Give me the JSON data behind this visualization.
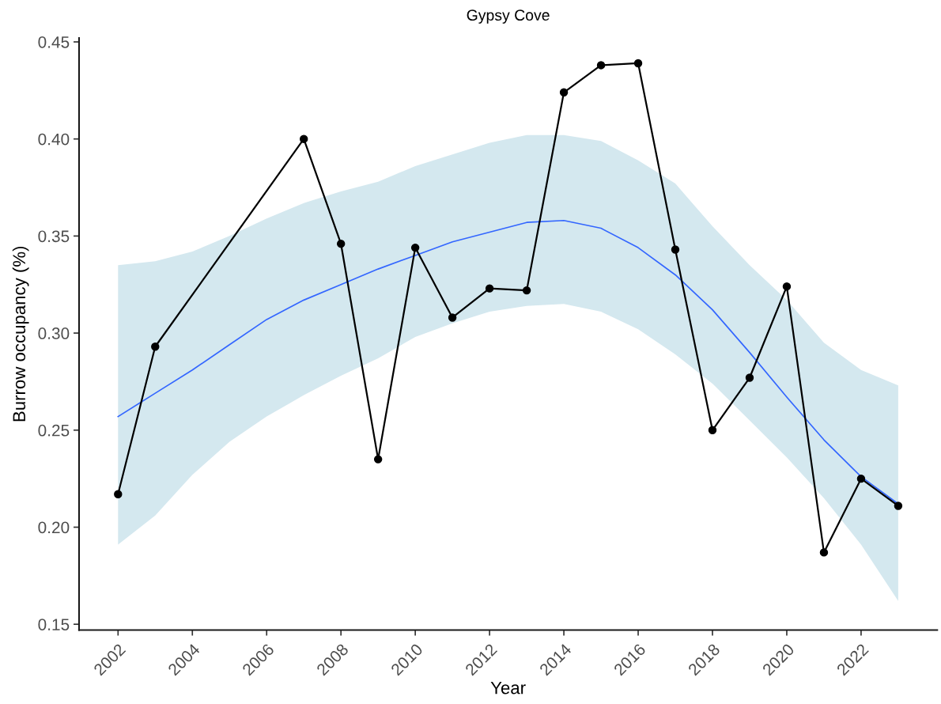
{
  "chart_data": {
    "type": "line",
    "title": "Gypsy Cove",
    "xlabel": "Year",
    "ylabel": "Burrow occupancy (%)",
    "xlim": [
      2000.95,
      2024.05
    ],
    "xticks": [
      2002,
      2004,
      2006,
      2008,
      2010,
      2012,
      2014,
      2016,
      2018,
      2020,
      2022
    ],
    "ylim": [
      0.147,
      0.452
    ],
    "yticks": [
      0.15,
      {
        "value": 0.2,
        "label": "0.20"
      },
      0.25,
      {
        "value": 0.3,
        "label": "0.30"
      },
      0.35,
      {
        "value": 0.4,
        "label": "0.40"
      },
      0.45
    ],
    "marker": "circle",
    "line_style": "solid",
    "series": [
      {
        "color": "#000000",
        "x": [
          2002,
          2003,
          2007,
          2008,
          2009,
          2010,
          2011,
          2012,
          2013,
          2014,
          2015,
          2016,
          2017,
          2018,
          2019,
          2020,
          2021,
          2022,
          2023
        ],
        "values": [
          0.217,
          0.293,
          0.4,
          0.346,
          0.235,
          0.344,
          0.308,
          0.323,
          0.322,
          0.424,
          0.438,
          0.439,
          0.343,
          0.25,
          0.277,
          0.324,
          0.187,
          0.225,
          0.211
        ]
      },
      {
        "type": "line",
        "color": "#3366ff",
        "marker": "none",
        "x": [
          2002,
          2003,
          2004,
          2005,
          2006,
          2007,
          2008,
          2009,
          2010,
          2011,
          2012,
          2013,
          2014,
          2015,
          2016,
          2017,
          2018,
          2019,
          2020,
          2021,
          2022,
          2023
        ],
        "values": [
          0.257,
          0.269,
          0.281,
          0.294,
          0.307,
          0.317,
          0.325,
          0.333,
          0.34,
          0.347,
          0.352,
          0.357,
          0.358,
          0.354,
          0.344,
          0.33,
          0.312,
          0.29,
          0.267,
          0.245,
          0.226,
          0.212
        ],
        "lower": [
          0.191,
          0.206,
          0.227,
          0.244,
          0.257,
          0.268,
          0.278,
          0.287,
          0.298,
          0.305,
          0.311,
          0.314,
          0.315,
          0.311,
          0.302,
          0.289,
          0.274,
          0.255,
          0.236,
          0.215,
          0.191,
          0.162
        ],
        "upper": [
          0.335,
          0.337,
          0.342,
          0.35,
          0.359,
          0.367,
          0.373,
          0.378,
          0.386,
          0.392,
          0.398,
          0.402,
          0.402,
          0.399,
          0.389,
          0.377,
          0.355,
          0.335,
          0.317,
          0.295,
          0.281,
          0.273
        ]
      }
    ]
  }
}
